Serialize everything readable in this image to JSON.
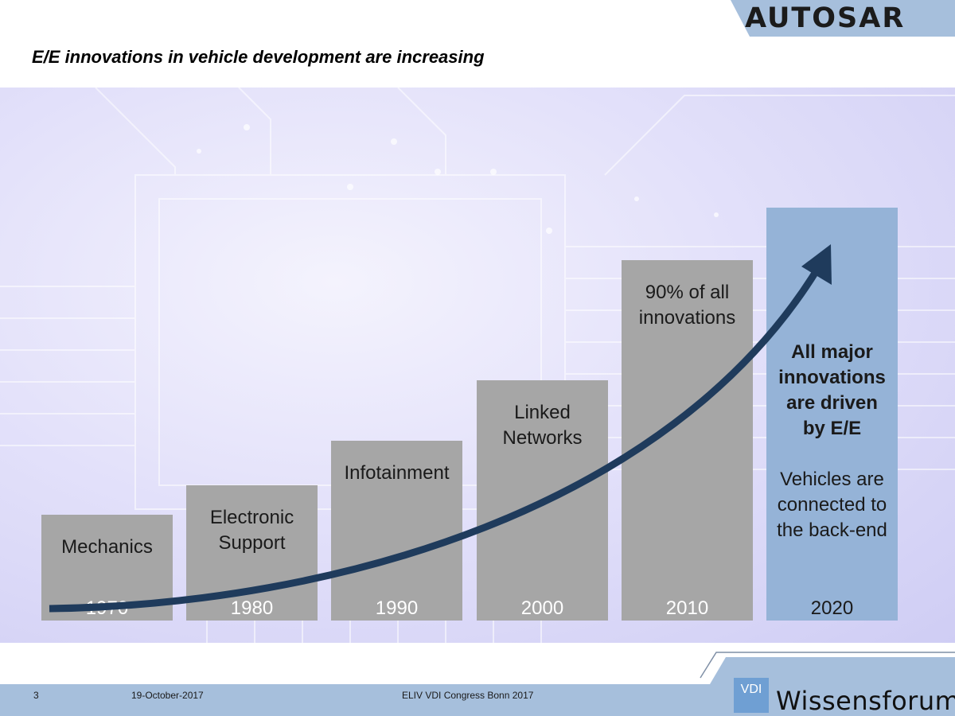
{
  "header": {
    "logo": "AUTOSAR",
    "title": "E/E innovations in vehicle development are increasing"
  },
  "chart_data": {
    "type": "bar",
    "categories": [
      "1970",
      "1980",
      "1990",
      "2000",
      "2010",
      "2020"
    ],
    "labels": [
      [
        "Mechanics"
      ],
      [
        "Electronic",
        "Support"
      ],
      [
        "Infotainment"
      ],
      [
        "Linked",
        "Networks"
      ],
      [
        "90% of all",
        "innovations"
      ],
      []
    ],
    "highlight": {
      "bold_lines": [
        "All major",
        "innovations",
        "are driven",
        "by E/E"
      ],
      "lines": [
        "Vehicles are",
        "connected to",
        "the back-end"
      ]
    },
    "bar_color": "#a6a6a6",
    "highlight_color": "#95b3d7",
    "arrow_color": "#1f3b5c"
  },
  "footer": {
    "page": "3",
    "date": "19-October-2017",
    "event": "ELIV  VDI Congress Bonn 2017",
    "vdi": "VDI",
    "brand": "Wissensforum"
  }
}
